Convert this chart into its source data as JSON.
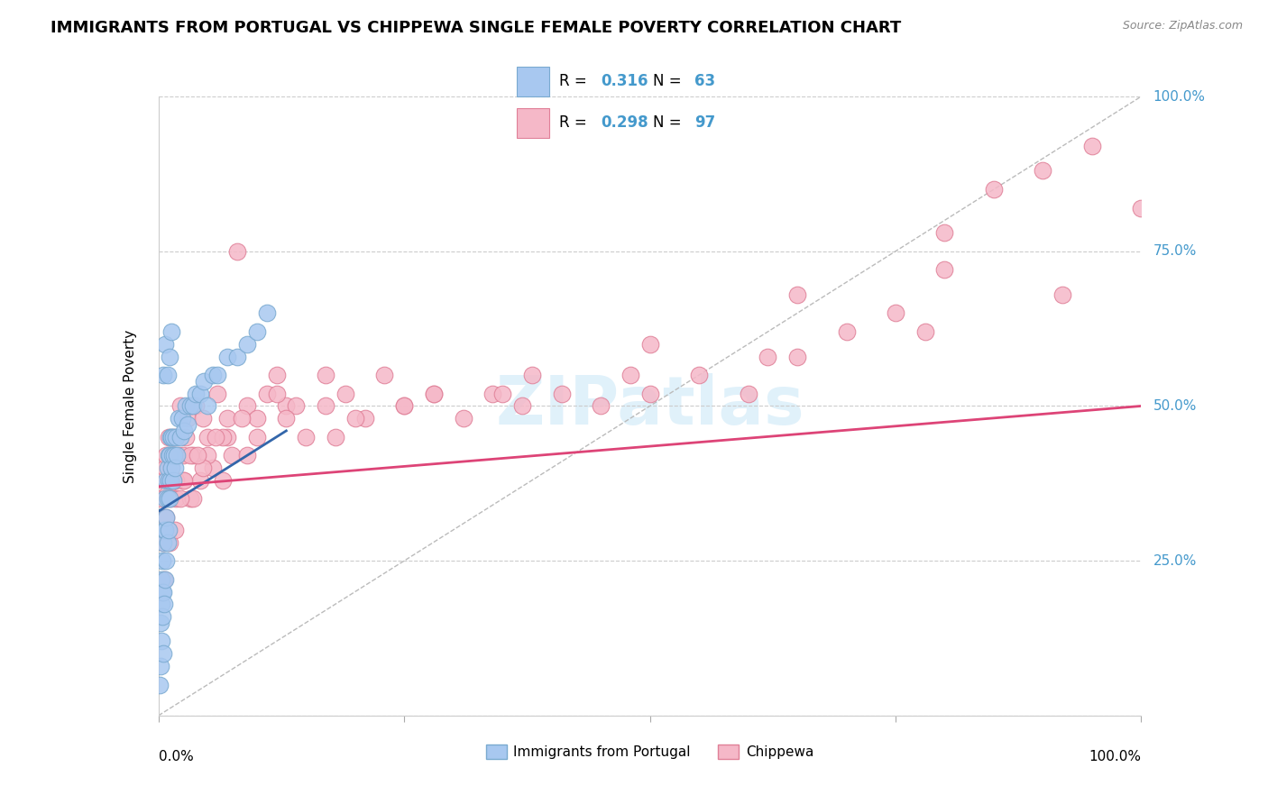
{
  "title": "IMMIGRANTS FROM PORTUGAL VS CHIPPEWA SINGLE FEMALE POVERTY CORRELATION CHART",
  "source": "Source: ZipAtlas.com",
  "ylabel": "Single Female Poverty",
  "xlim": [
    0,
    1
  ],
  "ylim": [
    0,
    1
  ],
  "y_tick_vals": [
    0.0,
    0.25,
    0.5,
    0.75,
    1.0
  ],
  "y_tick_labels": [
    "0.0%",
    "25.0%",
    "50.0%",
    "75.0%",
    "100.0%"
  ],
  "grid_color": "#cccccc",
  "background_color": "#ffffff",
  "title_fontsize": 13,
  "watermark_text": "ZIPatlas",
  "portugal_color": "#a8c8f0",
  "portugal_edge_color": "#7aaad0",
  "chippewa_color": "#f5b8c8",
  "chippewa_edge_color": "#e08098",
  "portugal_line_color": "#3366aa",
  "chippewa_line_color": "#dd4477",
  "diagonal_color": "#bbbbbb",
  "right_label_color": "#4499cc",
  "legend_text_color": "#4499cc",
  "info_r1": "0.316",
  "info_n1": "63",
  "info_r2": "0.298",
  "info_n2": "97",
  "portugal_x": [
    0.001,
    0.002,
    0.002,
    0.003,
    0.003,
    0.003,
    0.004,
    0.004,
    0.004,
    0.005,
    0.005,
    0.005,
    0.006,
    0.006,
    0.007,
    0.007,
    0.007,
    0.008,
    0.008,
    0.008,
    0.009,
    0.009,
    0.009,
    0.01,
    0.01,
    0.01,
    0.011,
    0.011,
    0.012,
    0.012,
    0.013,
    0.013,
    0.014,
    0.015,
    0.015,
    0.016,
    0.017,
    0.018,
    0.019,
    0.02,
    0.022,
    0.024,
    0.026,
    0.028,
    0.03,
    0.032,
    0.035,
    0.038,
    0.042,
    0.046,
    0.05,
    0.055,
    0.06,
    0.07,
    0.08,
    0.09,
    0.1,
    0.11,
    0.005,
    0.007,
    0.009,
    0.011,
    0.013
  ],
  "portugal_y": [
    0.05,
    0.08,
    0.15,
    0.12,
    0.18,
    0.22,
    0.16,
    0.2,
    0.25,
    0.1,
    0.2,
    0.28,
    0.18,
    0.3,
    0.22,
    0.3,
    0.35,
    0.25,
    0.32,
    0.38,
    0.28,
    0.35,
    0.4,
    0.3,
    0.38,
    0.42,
    0.35,
    0.42,
    0.38,
    0.45,
    0.4,
    0.45,
    0.42,
    0.38,
    0.45,
    0.42,
    0.4,
    0.45,
    0.42,
    0.48,
    0.45,
    0.48,
    0.46,
    0.5,
    0.47,
    0.5,
    0.5,
    0.52,
    0.52,
    0.54,
    0.5,
    0.55,
    0.55,
    0.58,
    0.58,
    0.6,
    0.62,
    0.65,
    0.55,
    0.6,
    0.55,
    0.58,
    0.62
  ],
  "chippewa_x": [
    0.003,
    0.005,
    0.007,
    0.008,
    0.009,
    0.01,
    0.011,
    0.012,
    0.013,
    0.015,
    0.016,
    0.018,
    0.02,
    0.022,
    0.025,
    0.028,
    0.03,
    0.032,
    0.035,
    0.038,
    0.042,
    0.045,
    0.05,
    0.055,
    0.06,
    0.065,
    0.07,
    0.075,
    0.08,
    0.09,
    0.1,
    0.11,
    0.12,
    0.13,
    0.15,
    0.17,
    0.19,
    0.21,
    0.23,
    0.25,
    0.28,
    0.31,
    0.34,
    0.37,
    0.41,
    0.45,
    0.5,
    0.55,
    0.6,
    0.65,
    0.7,
    0.75,
    0.8,
    0.85,
    0.9,
    0.95,
    1.0,
    0.005,
    0.008,
    0.012,
    0.018,
    0.025,
    0.035,
    0.05,
    0.07,
    0.1,
    0.14,
    0.2,
    0.28,
    0.38,
    0.5,
    0.65,
    0.8,
    0.01,
    0.015,
    0.022,
    0.032,
    0.045,
    0.065,
    0.09,
    0.13,
    0.18,
    0.25,
    0.35,
    0.48,
    0.62,
    0.78,
    0.92,
    0.006,
    0.011,
    0.017,
    0.026,
    0.04,
    0.058,
    0.085,
    0.12,
    0.17
  ],
  "chippewa_y": [
    0.35,
    0.38,
    0.4,
    0.42,
    0.36,
    0.45,
    0.38,
    0.4,
    0.38,
    0.42,
    0.45,
    0.35,
    0.42,
    0.5,
    0.38,
    0.45,
    0.48,
    0.35,
    0.42,
    0.5,
    0.38,
    0.48,
    0.45,
    0.4,
    0.52,
    0.38,
    0.48,
    0.42,
    0.75,
    0.5,
    0.48,
    0.52,
    0.55,
    0.5,
    0.45,
    0.5,
    0.52,
    0.48,
    0.55,
    0.5,
    0.52,
    0.48,
    0.52,
    0.5,
    0.52,
    0.5,
    0.52,
    0.55,
    0.52,
    0.58,
    0.62,
    0.65,
    0.78,
    0.85,
    0.88,
    0.92,
    0.82,
    0.28,
    0.32,
    0.35,
    0.38,
    0.42,
    0.35,
    0.42,
    0.45,
    0.45,
    0.5,
    0.48,
    0.52,
    0.55,
    0.6,
    0.68,
    0.72,
    0.3,
    0.38,
    0.35,
    0.42,
    0.4,
    0.45,
    0.42,
    0.48,
    0.45,
    0.5,
    0.52,
    0.55,
    0.58,
    0.62,
    0.68,
    0.22,
    0.28,
    0.3,
    0.38,
    0.42,
    0.45,
    0.48,
    0.52,
    0.55
  ],
  "portugal_line_x": [
    0.0,
    0.13
  ],
  "portugal_line_y": [
    0.33,
    0.46
  ],
  "chippewa_line_x": [
    0.0,
    1.0
  ],
  "chippewa_line_y": [
    0.37,
    0.5
  ]
}
